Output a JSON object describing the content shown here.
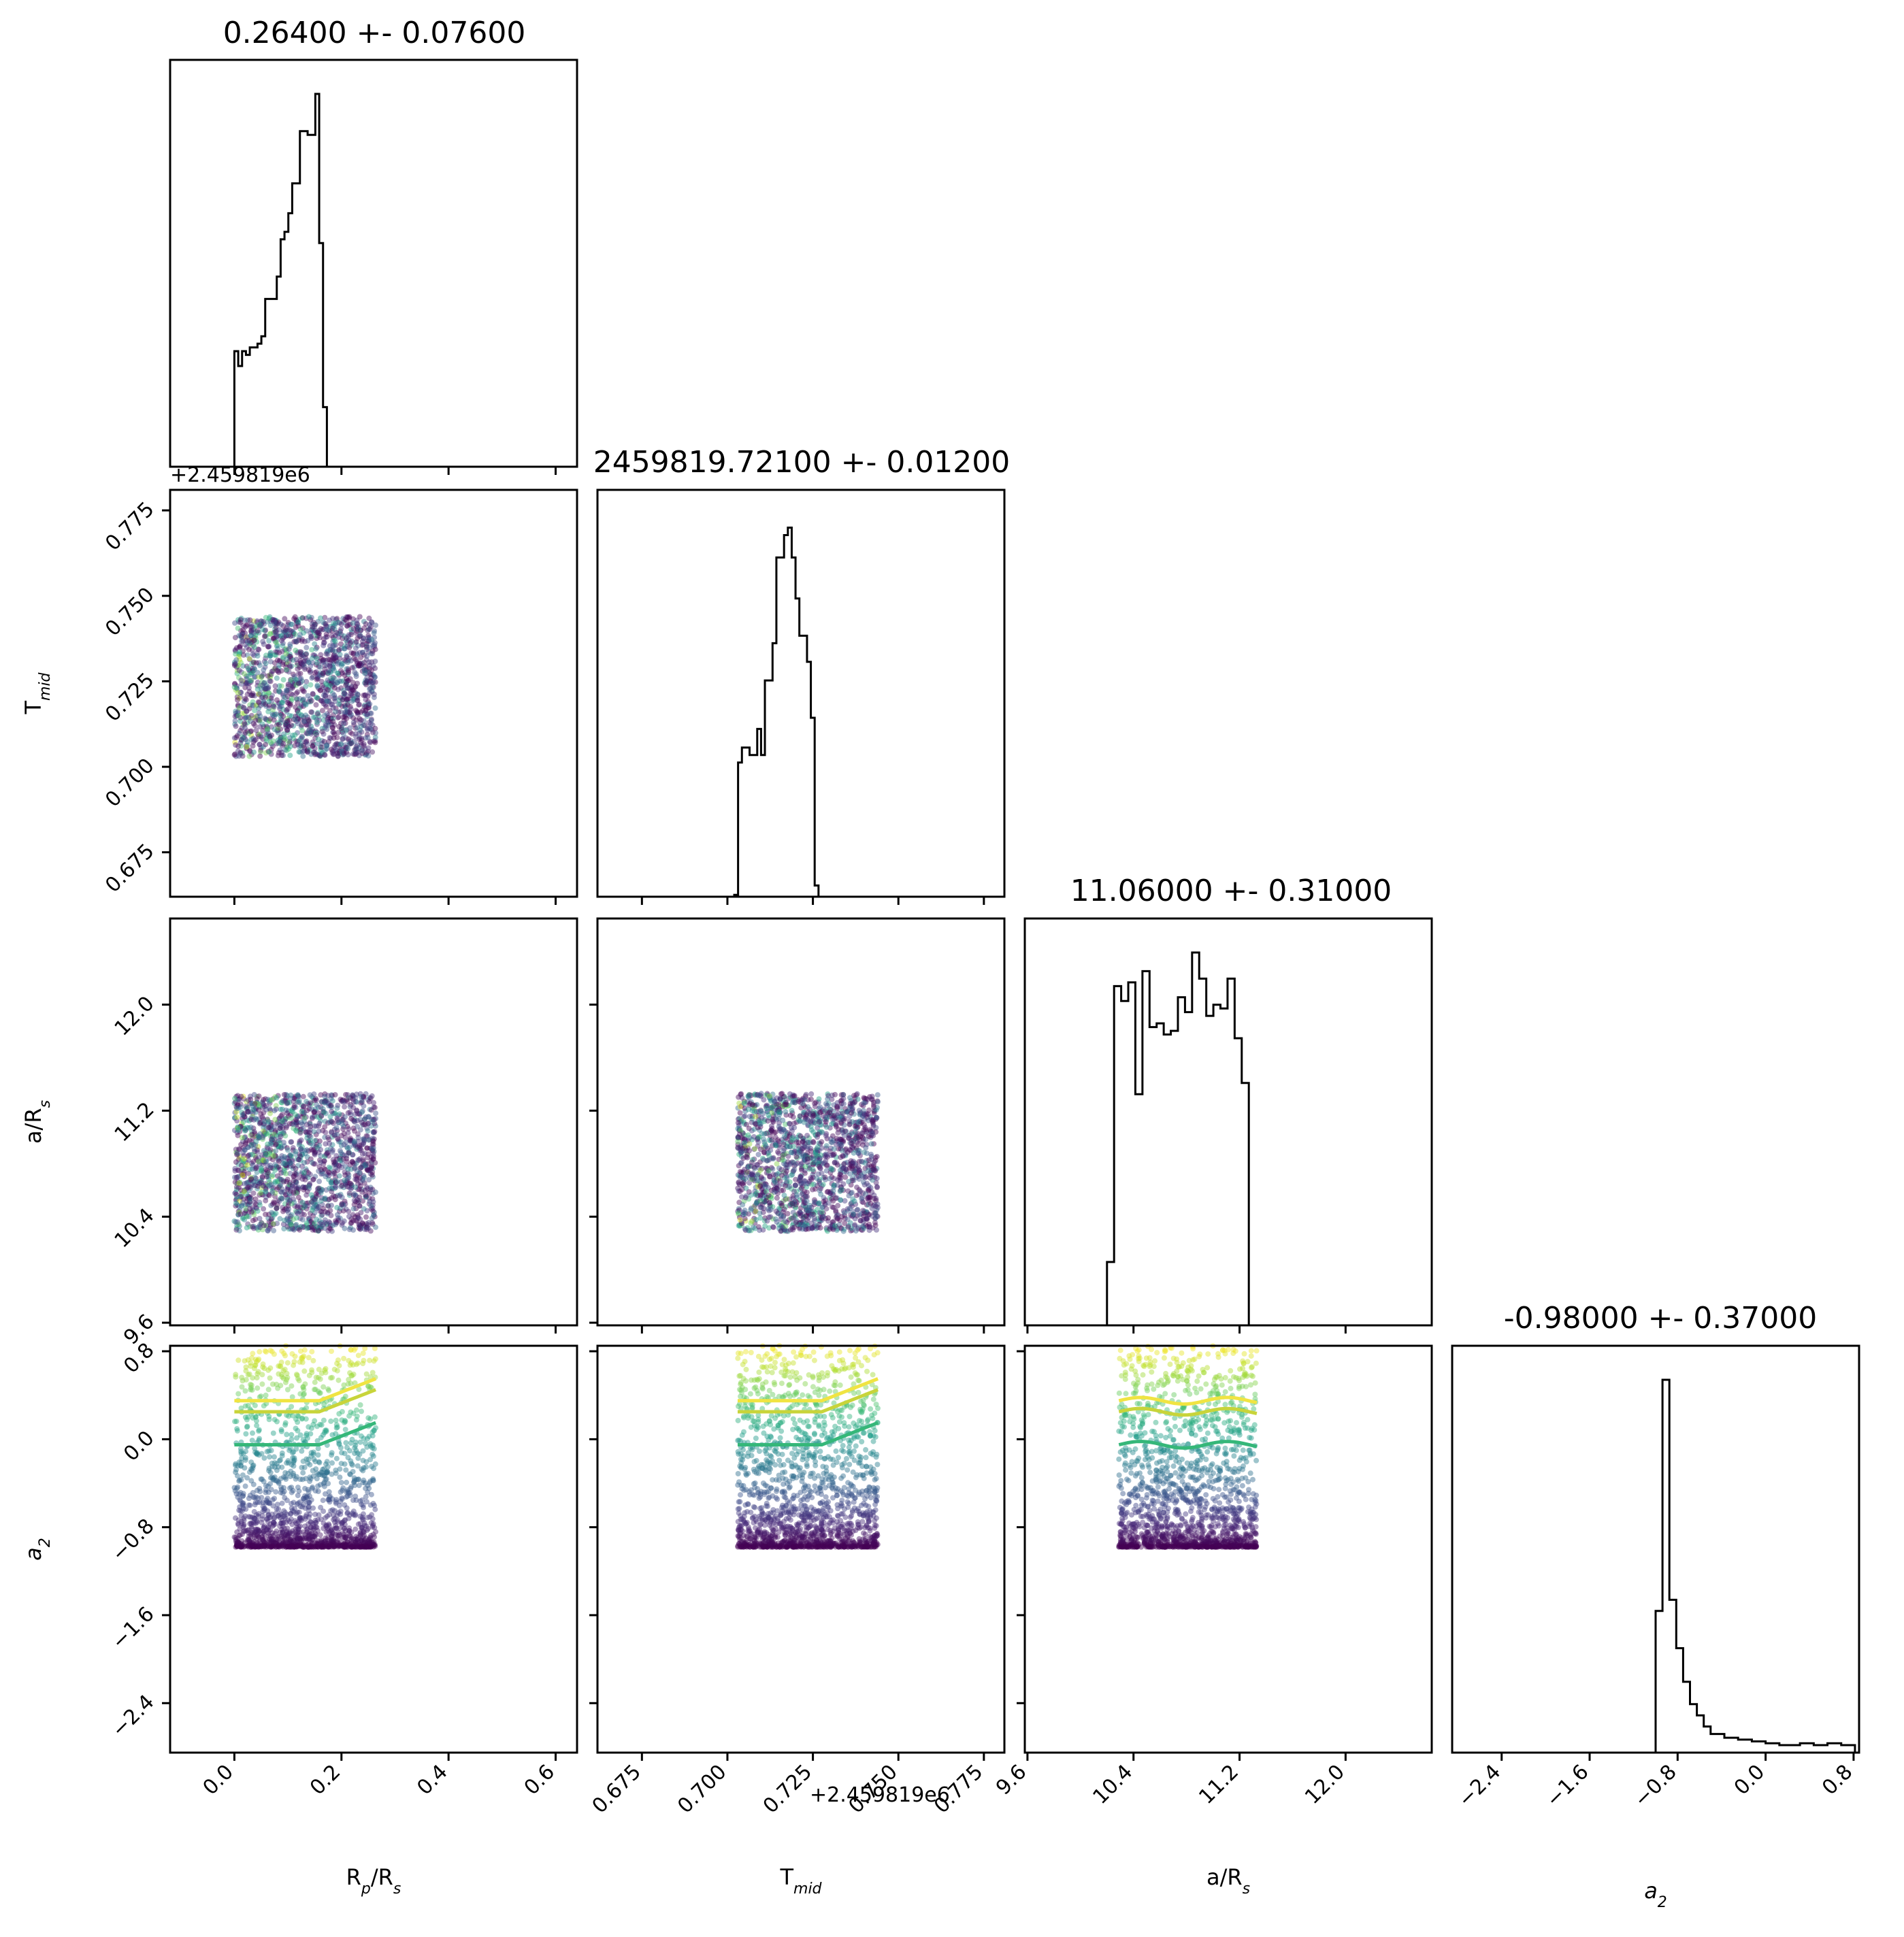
{
  "chart_data": {
    "type": "corner",
    "parameters": [
      {
        "key": "rp",
        "label": "R",
        "sub": "p",
        "suffix": "/R",
        "sub2": "s",
        "range": [
          -0.12,
          0.64
        ],
        "ticks": [
          0.0,
          0.2,
          0.4,
          0.6
        ],
        "tick_labels": [
          "0.0",
          "0.2",
          "0.4",
          "0.6"
        ]
      },
      {
        "key": "tmid",
        "label": "T",
        "sub": "mid",
        "suffix": "",
        "sub2": "",
        "range": [
          0.662,
          0.781
        ],
        "ticks": [
          0.675,
          0.7,
          0.725,
          0.75,
          0.775
        ],
        "tick_labels": [
          "0.675",
          "0.700",
          "0.725",
          "0.750",
          "0.775"
        ],
        "offset_text": "+2.459819e6"
      },
      {
        "key": "ars",
        "label": "a/R",
        "sub": "s",
        "suffix": "",
        "sub2": "",
        "range": [
          9.58,
          12.65
        ],
        "ticks": [
          9.6,
          10.4,
          11.2,
          12.0
        ],
        "tick_labels": [
          "9.6",
          "10.4",
          "11.2",
          "12.0"
        ]
      },
      {
        "key": "a2",
        "label": "a",
        "sub": "2",
        "suffix": "",
        "sub2": "",
        "italic": true,
        "range": [
          -2.85,
          0.85
        ],
        "ticks": [
          -2.4,
          -1.6,
          -0.8,
          0.0,
          0.8
        ],
        "tick_labels": [
          "−2.4",
          "−1.6",
          "−0.8",
          "0.0",
          "0.8"
        ]
      }
    ],
    "titles": [
      "0.26400 +- 0.07600",
      "2459819.72100 +- 0.01200",
      "11.06000 +- 0.31000",
      "-0.98000 +- 0.37000"
    ],
    "histograms": [
      {
        "edges_start": 0.0,
        "bin_width": 0.0072,
        "counts": [
          0.31,
          0.27,
          0.31,
          0.3,
          0.32,
          0.32,
          0.33,
          0.35,
          0.45,
          0.45,
          0.45,
          0.51,
          0.61,
          0.63,
          0.68,
          0.76,
          0.76,
          0.9,
          0.9,
          0.89,
          0.89,
          1.0,
          0.6,
          0.16
        ]
      },
      {
        "edges_start": 0.702,
        "bin_width": 0.00112,
        "counts": [
          0.005,
          0.36,
          0.4,
          0.4,
          0.38,
          0.38,
          0.45,
          0.38,
          0.58,
          0.58,
          0.68,
          0.91,
          0.91,
          0.97,
          0.99,
          0.91,
          0.8,
          0.7,
          0.7,
          0.63,
          0.48,
          0.03
        ]
      },
      {
        "edges_start": 10.2,
        "bin_width": 0.0535,
        "counts": [
          0.17,
          0.91,
          0.87,
          0.92,
          0.62,
          0.95,
          0.8,
          0.81,
          0.78,
          0.79,
          0.88,
          0.84,
          1.0,
          0.93,
          0.83,
          0.86,
          0.85,
          0.93,
          0.77,
          0.65,
          0.0
        ]
      },
      {
        "edges_start": -1.0,
        "bin_width": 0.0625,
        "counts": [
          0.38,
          1.0,
          0.41,
          0.28,
          0.19,
          0.13,
          0.1,
          0.07,
          0.05,
          0.05,
          0.04,
          0.04,
          0.035,
          0.035,
          0.03,
          0.03,
          0.025,
          0.025,
          0.02,
          0.02,
          0.02,
          0.025,
          0.025,
          0.02,
          0.02,
          0.025,
          0.025,
          0.02,
          0.02
        ]
      }
    ],
    "scatter": {
      "colormap": "viridis",
      "note": "Each 2D panel shows uniformly distributed samples within the parameter bounds, colored by a2 value (viridis).",
      "bounds": {
        "rp": [
          0.0,
          0.264
        ],
        "tmid": [
          0.703,
          0.744
        ],
        "ars": [
          10.29,
          11.33
        ],
        "a2": [
          -0.98,
          0.85
        ]
      },
      "trend_lines": [
        {
          "color": "#f0e442",
          "a2_level": 0.35
        },
        {
          "color": "#c8d43a",
          "a2_level": 0.25
        },
        {
          "color": "#35b779",
          "a2_level": -0.05
        }
      ]
    }
  }
}
